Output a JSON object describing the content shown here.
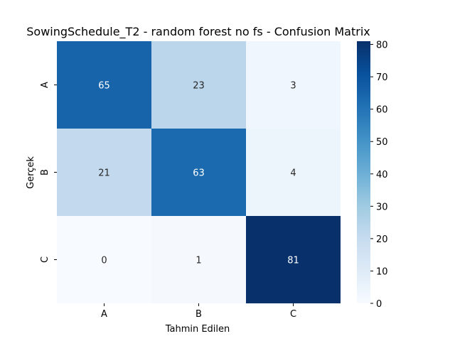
{
  "chart_data": {
    "type": "heatmap",
    "title": "SowingSchedule_T2 - random forest no fs - Confusion Matrix",
    "xlabel": "Tahmin Edilen",
    "ylabel": "Gerçek",
    "x_categories": [
      "A",
      "B",
      "C"
    ],
    "y_categories": [
      "A",
      "B",
      "C"
    ],
    "values": [
      [
        65,
        23,
        3
      ],
      [
        21,
        63,
        4
      ],
      [
        0,
        1,
        81
      ]
    ],
    "vmin": 0,
    "vmax": 81,
    "colormap": "Blues",
    "colorbar_ticks": [
      0,
      10,
      20,
      30,
      40,
      50,
      60,
      70,
      80
    ]
  }
}
